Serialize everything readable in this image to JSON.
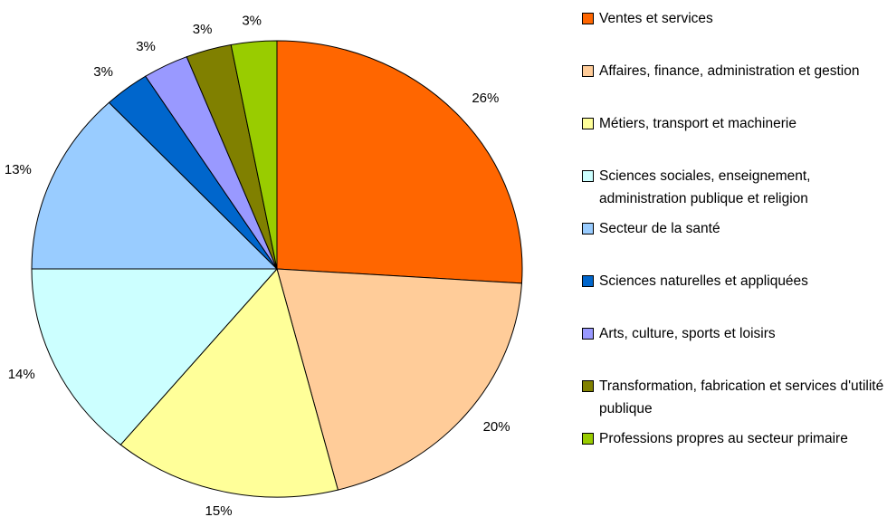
{
  "chart_data": {
    "type": "pie",
    "categories": [
      "Ventes et services",
      "Affaires, finance, administration et gestion",
      "Métiers, transport et machinerie",
      "Sciences sociales, enseignement, administration publique et religion",
      "Secteur de la santé",
      "Sciences naturelles et appliquées",
      "Arts, culture, sports et loisirs",
      "Transformation, fabrication et services d'utilité publique",
      "Professions propres au secteur primaire"
    ],
    "values": [
      26,
      20,
      15,
      14,
      13,
      3,
      3,
      3,
      3
    ],
    "value_labels": [
      "26%",
      "20%",
      "15%",
      "14%",
      "13%",
      "3%",
      "3%",
      "3%",
      "3%"
    ],
    "colors": [
      "#ff6600",
      "#ffcc99",
      "#ffff99",
      "#ccffff",
      "#99ccff",
      "#0066cc",
      "#9999ff",
      "#808000",
      "#99cc00"
    ],
    "legend": "right"
  }
}
